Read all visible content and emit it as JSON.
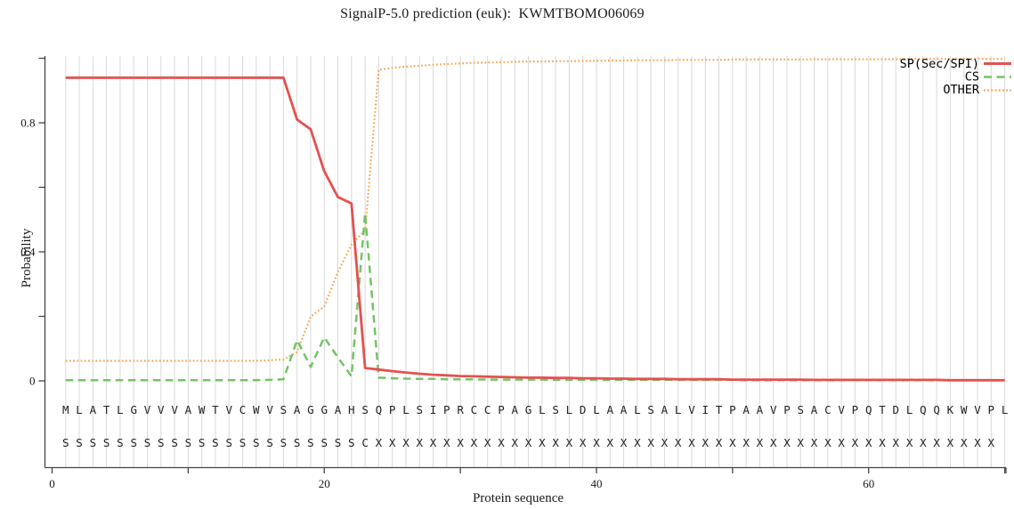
{
  "title": "SignalP-5.0 prediction (euk):  KWMTBOMO06069",
  "chart_data": {
    "type": "line",
    "title": "SignalP-5.0 prediction (euk):  KWMTBOMO06069",
    "xlabel": "Protein sequence",
    "ylabel": "Probability",
    "xlim": [
      0,
      70
    ],
    "ylim": [
      0,
      1
    ],
    "grid": "vertical-gridline-per-residue",
    "legend_position": "top-right",
    "axes": {
      "y_ticks": [
        {
          "v": 0,
          "label": "0"
        },
        {
          "v": 0.2,
          "label": ""
        },
        {
          "v": 0.4,
          "label": "0.4"
        },
        {
          "v": 0.6,
          "label": ""
        },
        {
          "v": 0.8,
          "label": "0.8"
        },
        {
          "v": 1.0,
          "label": ""
        }
      ],
      "x_ticks": [
        {
          "v": 0,
          "label": "0"
        },
        {
          "v": 10,
          "label": ""
        },
        {
          "v": 20,
          "label": "20"
        },
        {
          "v": 30,
          "label": ""
        },
        {
          "v": 40,
          "label": "40"
        },
        {
          "v": 50,
          "label": ""
        },
        {
          "v": 60,
          "label": "60"
        },
        {
          "v": 70,
          "label": ""
        }
      ]
    },
    "sequence": "MLATLGVVVAWTVCWVSAGGAHSQPLSIPRCCPAGLSLDLAALSALVITPAAVPSACVPQTDLQQKWVPL",
    "states": "SSSSSSSSSSSSSSSSSSSSSSCXXXXXXXXXXXXXXXXXXXXXXXXXXXXXXXXXXXXXXXXXXXXXX",
    "series": [
      {
        "name": "SP(Sec/SPI)",
        "color": "#e4514f",
        "style": "solid",
        "values": [
          0.94,
          0.94,
          0.94,
          0.94,
          0.94,
          0.94,
          0.94,
          0.94,
          0.94,
          0.94,
          0.94,
          0.94,
          0.94,
          0.94,
          0.94,
          0.94,
          0.94,
          0.81,
          0.78,
          0.65,
          0.57,
          0.55,
          0.04,
          0.035,
          0.03,
          0.026,
          0.022,
          0.019,
          0.017,
          0.015,
          0.014,
          0.013,
          0.012,
          0.011,
          0.01,
          0.01,
          0.009,
          0.009,
          0.008,
          0.008,
          0.007,
          0.007,
          0.006,
          0.006,
          0.006,
          0.005,
          0.005,
          0.005,
          0.005,
          0.004,
          0.004,
          0.004,
          0.004,
          0.004,
          0.004,
          0.003,
          0.003,
          0.003,
          0.003,
          0.003,
          0.003,
          0.003,
          0.003,
          0.003,
          0.003,
          0.002,
          0.002,
          0.002,
          0.002,
          0.002
        ]
      },
      {
        "name": "CS",
        "color": "#74c465",
        "style": "dashed",
        "values": [
          0.002,
          0.002,
          0.002,
          0.002,
          0.002,
          0.002,
          0.002,
          0.002,
          0.002,
          0.002,
          0.002,
          0.002,
          0.002,
          0.002,
          0.002,
          0.003,
          0.005,
          0.126,
          0.043,
          0.135,
          0.073,
          0.014,
          0.52,
          0.01,
          0.008,
          0.007,
          0.006,
          0.006,
          0.005,
          0.005,
          0.005,
          0.004,
          0.004,
          0.004,
          0.004,
          0.004,
          0.003,
          0.003,
          0.003,
          0.003,
          0.003,
          0.003,
          0.003,
          0.003,
          0.003,
          0.003,
          0.003,
          0.003,
          0.003,
          0.003,
          0.002,
          0.002,
          0.002,
          0.002,
          0.002,
          0.002,
          0.002,
          0.002,
          0.002,
          0.002,
          0.002,
          0.002,
          0.002,
          0.002,
          0.002,
          0.002,
          0.002,
          0.002,
          0.002,
          0.002
        ]
      },
      {
        "name": "OTHER",
        "color": "#f5aa5e",
        "style": "dotted",
        "values": [
          0.062,
          0.062,
          0.062,
          0.062,
          0.062,
          0.062,
          0.062,
          0.062,
          0.062,
          0.062,
          0.062,
          0.062,
          0.062,
          0.062,
          0.062,
          0.064,
          0.066,
          0.089,
          0.199,
          0.231,
          0.337,
          0.422,
          0.468,
          0.965,
          0.97,
          0.974,
          0.977,
          0.98,
          0.982,
          0.984,
          0.986,
          0.987,
          0.988,
          0.989,
          0.99,
          0.99,
          0.991,
          0.991,
          0.992,
          0.992,
          0.993,
          0.993,
          0.994,
          0.994,
          0.994,
          0.995,
          0.995,
          0.995,
          0.995,
          0.996,
          0.996,
          0.996,
          0.996,
          0.996,
          0.996,
          0.997,
          0.997,
          0.997,
          0.997,
          0.997,
          0.997,
          0.997,
          0.998,
          0.998,
          0.998,
          0.998,
          0.998,
          0.998,
          0.998,
          0.998
        ]
      }
    ]
  }
}
